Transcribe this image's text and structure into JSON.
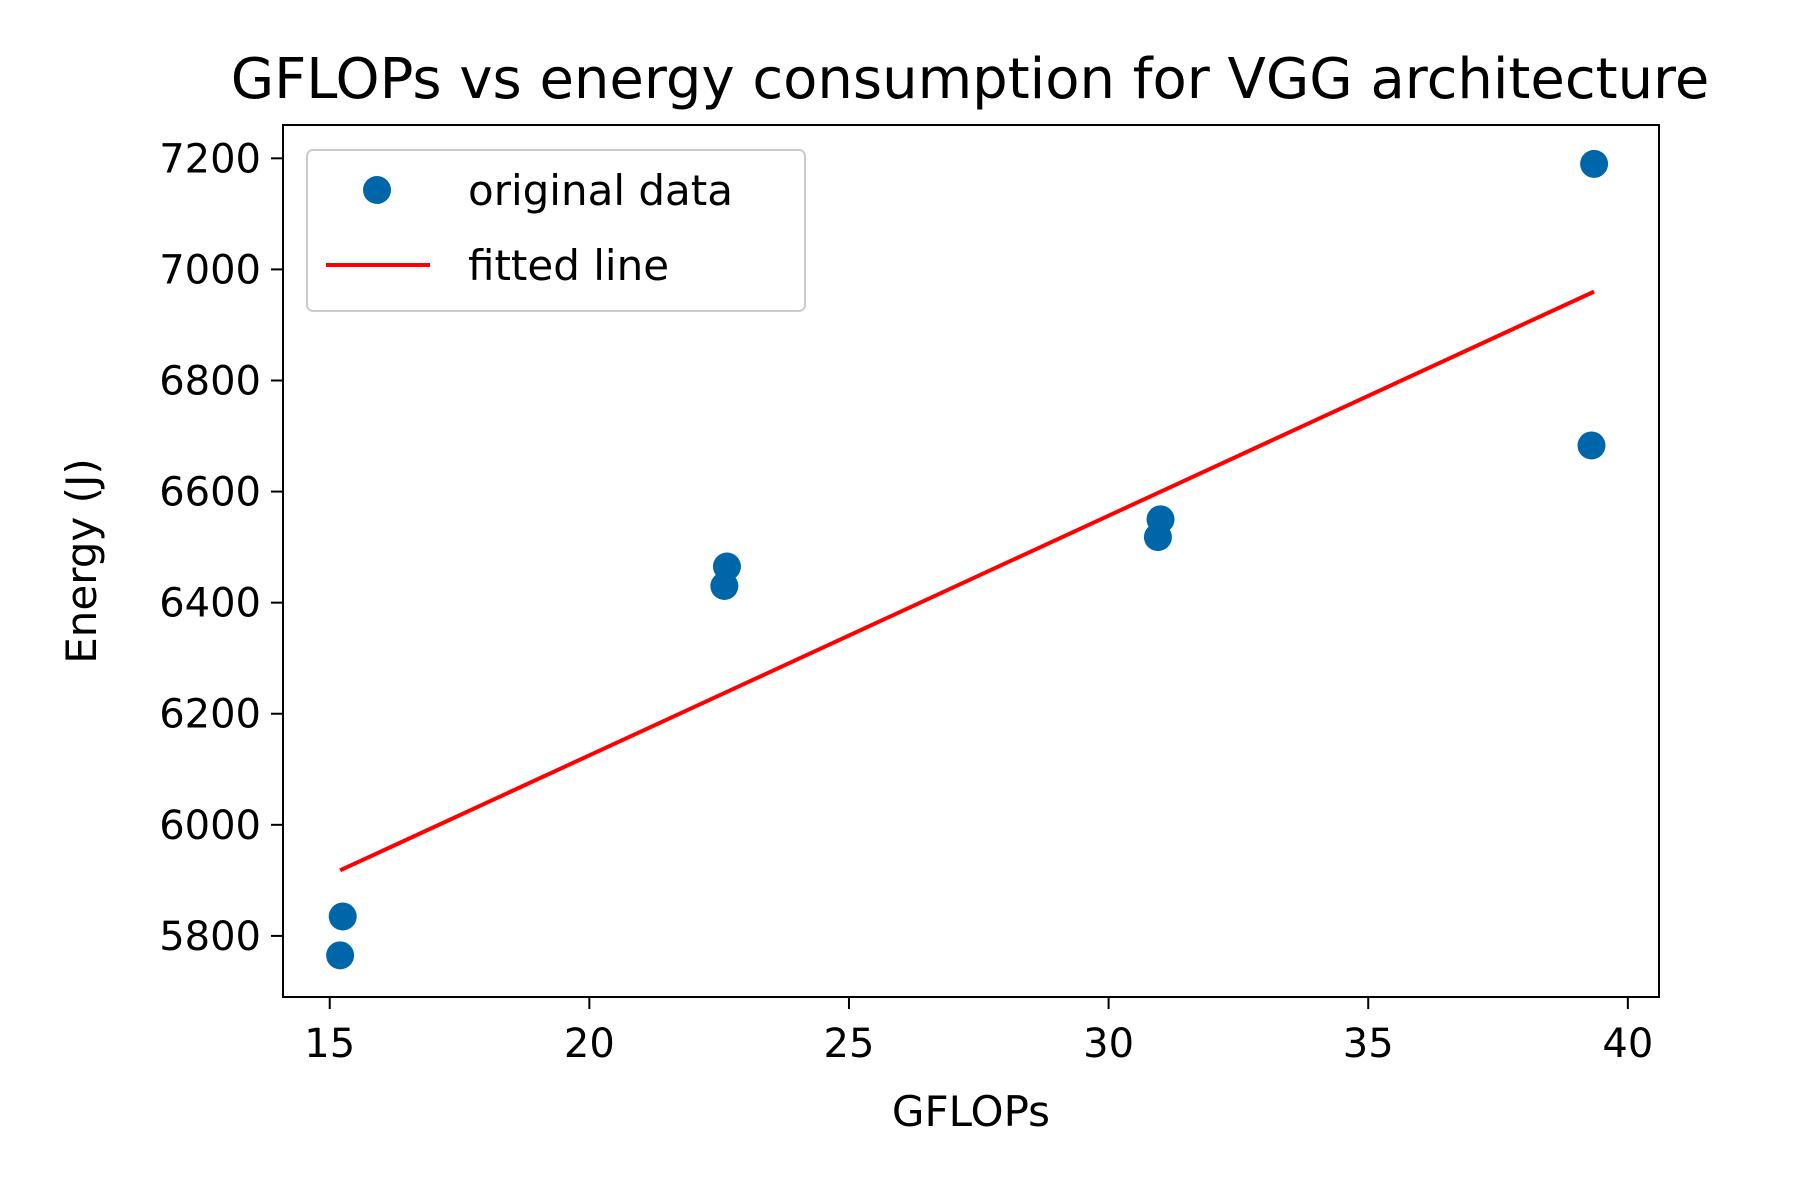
{
  "chart_data": {
    "type": "scatter",
    "title": "GFLOPs vs energy consumption for VGG architecture",
    "xlabel": "GFLOPs",
    "ylabel": "Energy (J)",
    "xlim": [
      14.1,
      40.6
    ],
    "ylim": [
      5690,
      7260
    ],
    "xticks": [
      15,
      20,
      25,
      30,
      35,
      40
    ],
    "yticks": [
      5800,
      6000,
      6200,
      6400,
      6600,
      6800,
      7000,
      7200
    ],
    "grid": false,
    "legend_position": "top-left",
    "series": [
      {
        "name": "original data",
        "kind": "scatter",
        "color": "#0066aa",
        "points": [
          {
            "x": 15.2,
            "y": 5765
          },
          {
            "x": 15.25,
            "y": 5835
          },
          {
            "x": 22.6,
            "y": 6430
          },
          {
            "x": 22.65,
            "y": 6465
          },
          {
            "x": 30.95,
            "y": 6518
          },
          {
            "x": 31.0,
            "y": 6550
          },
          {
            "x": 39.3,
            "y": 6683
          },
          {
            "x": 39.35,
            "y": 7190
          }
        ]
      },
      {
        "name": "fitted line",
        "kind": "line",
        "color": "#ff0000",
        "points": [
          {
            "x": 15.2,
            "y": 5918
          },
          {
            "x": 39.35,
            "y": 6960
          }
        ]
      }
    ]
  }
}
